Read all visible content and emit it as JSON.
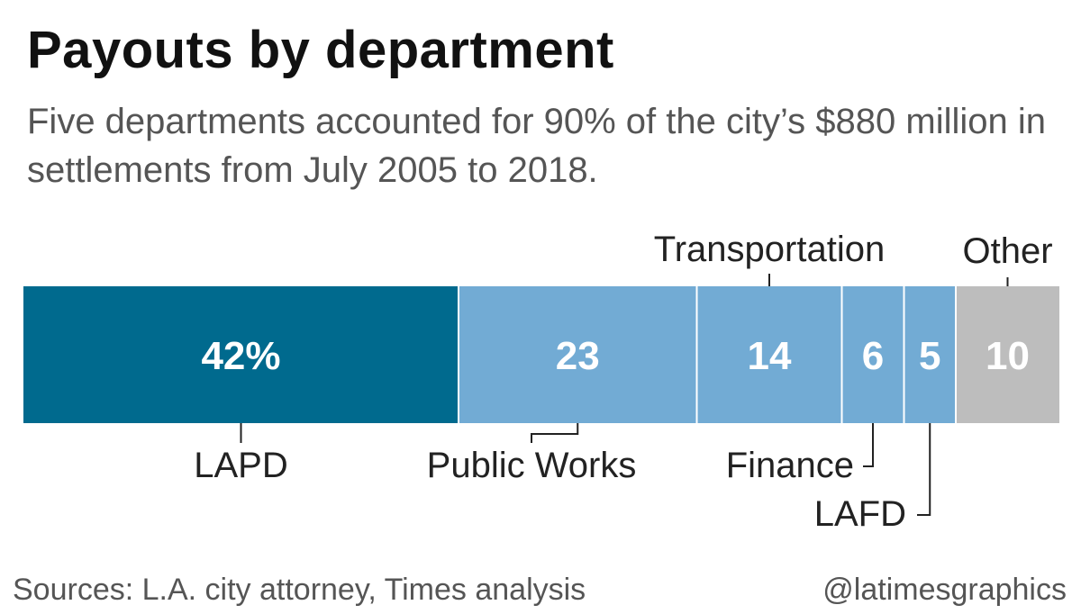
{
  "chart_data": {
    "type": "bar",
    "orientation": "stacked-horizontal",
    "title": "Payouts by department",
    "subtitle": "Five departments accounted for 90% of the city’s $880 million in settlements from July 2005 to 2018.",
    "categories": [
      "LAPD",
      "Public Works",
      "Transportation",
      "Finance",
      "LAFD",
      "Other"
    ],
    "values": [
      42,
      23,
      14,
      6,
      5,
      10
    ],
    "value_labels": [
      "42%",
      "23",
      "14",
      "6",
      "5",
      "10"
    ],
    "units": "percent",
    "colors": [
      "#006a8e",
      "#72abd4",
      "#72abd4",
      "#72abd4",
      "#72abd4",
      "#bdbdbd"
    ],
    "legend": "none",
    "grid": false
  },
  "footer": {
    "source": "Sources: L.A. city attorney, Times analysis",
    "credit": "@latimesgraphics"
  }
}
